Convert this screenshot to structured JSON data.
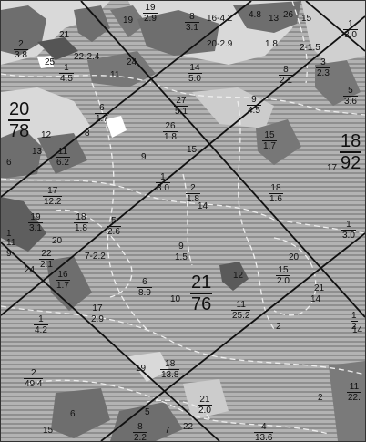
{
  "map": {
    "colors": {
      "background": "#b3b3b3",
      "stripe": "#8f8f8f",
      "dark_patch": "#6e6e6e",
      "light_patch": "#d9d9d9",
      "boundary_dashed": "#eeeeee",
      "grid_lines": "#111111"
    },
    "large_labels": [
      {
        "num": "20",
        "den": "78"
      },
      {
        "num": "18",
        "den": "92"
      },
      {
        "num": "21",
        "den": "76"
      }
    ],
    "plot_labels": [
      {
        "num": "2",
        "den": "3.8"
      },
      {
        "num": "1",
        "den": "4.5"
      },
      {
        "num": "8",
        "den": "3.1"
      },
      {
        "num": "14",
        "den": "5.0"
      },
      {
        "num": "27",
        "den": "5.1"
      },
      {
        "num": "6",
        "den": "1.7"
      },
      {
        "num": "26",
        "den": "1.8"
      },
      {
        "num": "9",
        "den": "4.5"
      },
      {
        "num": "8",
        "den": "2.1"
      },
      {
        "num": "1",
        "den": "3.0"
      },
      {
        "num": "3",
        "den": "2.3"
      },
      {
        "num": "5",
        "den": "3.6"
      },
      {
        "num": "15",
        "den": "1.7"
      },
      {
        "num": "11",
        "den": "6.2"
      },
      {
        "num": "17",
        "den": "12.2"
      },
      {
        "num": "19",
        "den": "3.1"
      },
      {
        "num": "18",
        "den": "1.8"
      },
      {
        "num": "5",
        "den": "2.6"
      },
      {
        "num": "1",
        "den": "3.0"
      },
      {
        "num": "2",
        "den": "1.8"
      },
      {
        "num": "18",
        "den": "1.6"
      },
      {
        "num": "22",
        "den": "2.1"
      },
      {
        "num": "9",
        "den": "1.5"
      },
      {
        "num": "16",
        "den": "1.7"
      },
      {
        "num": "6",
        "den": "8.9"
      },
      {
        "num": "15",
        "den": "2.0"
      },
      {
        "num": "17",
        "den": "2.9"
      },
      {
        "num": "1",
        "den": "4.2"
      },
      {
        "num": "18",
        "den": "13.8"
      },
      {
        "num": "2",
        "den": "49.4"
      },
      {
        "num": "21",
        "den": "2.0"
      },
      {
        "num": "4",
        "den": "13.6"
      },
      {
        "num": "11",
        "den": "22."
      },
      {
        "num": "8",
        "den": "2.2"
      },
      {
        "num": "11",
        "den": "25.2"
      },
      {
        "num": "1",
        "den": "3.0"
      },
      {
        "num": "19",
        "den": "2.9"
      },
      {
        "num": "1",
        "den": "2"
      }
    ],
    "plain_labels": [
      "19",
      "16-4.2",
      "4.8",
      "13",
      "26",
      "15",
      "20-2.9",
      "1.8",
      "2-1.5",
      "22-2.4",
      "21",
      "24",
      "25",
      "11",
      "12",
      "13",
      "6",
      "8",
      "9",
      "15",
      "17",
      "24",
      "20",
      "7-2.2",
      "14",
      "12",
      "10",
      "20",
      "14",
      "6",
      "15",
      "19",
      "5",
      "7",
      "22",
      "2",
      "11",
      "21",
      "2",
      "14",
      "1",
      "9"
    ]
  }
}
